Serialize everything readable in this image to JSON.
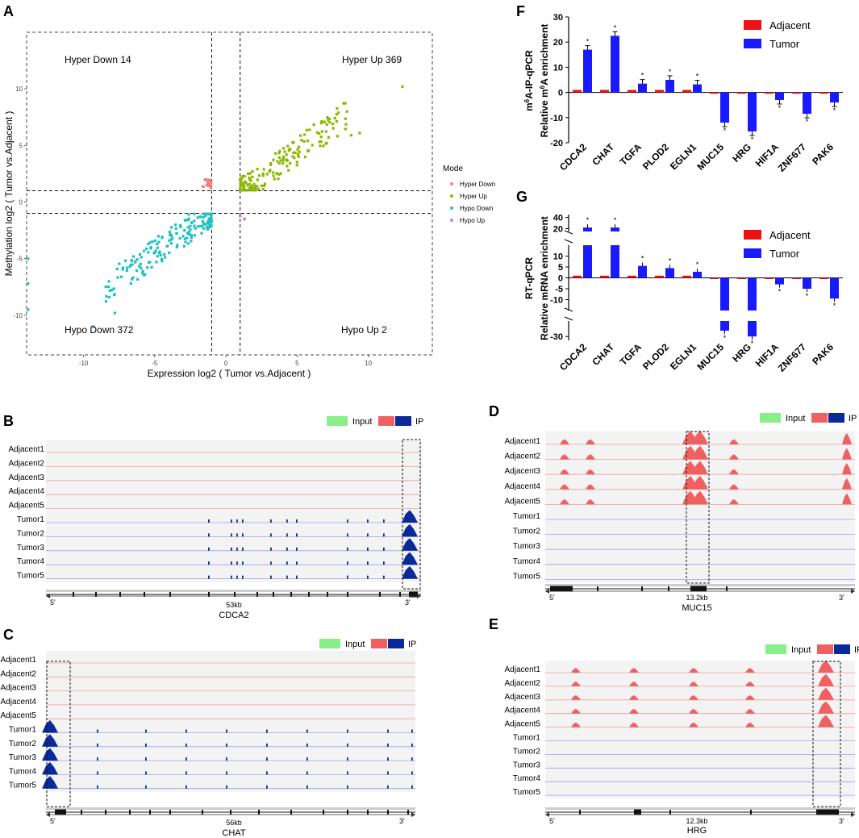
{
  "colors": {
    "hyper_down": "#f08080",
    "hyper_up": "#8db600",
    "hypo_down": "#20c0c0",
    "hypo_up": "#c080f0",
    "adjacent": "#ee1111",
    "tumor": "#1a1aff",
    "input": "#88ee88",
    "ip_red": "#f06060",
    "ip_blue": "#0a2a9a",
    "track_bg": "#f3f3f3",
    "adj_line": "#f0a0a0",
    "tum_line": "#a0a0e8"
  },
  "panel_letters": {
    "a": "A",
    "b": "B",
    "c": "C",
    "d": "D",
    "e": "E",
    "f": "F",
    "g": "G"
  },
  "chart_data": [
    {
      "id": "A",
      "type": "scatter",
      "xlabel": "Expression log2 ( Tumor vs.Adjacent )",
      "ylabel": "Methylation log2 ( Tumor vs.Adjacent )",
      "xlim": [
        -14,
        14.5
      ],
      "ylim": [
        -13.5,
        15
      ],
      "xticks": [
        -10,
        -5,
        0,
        5,
        10
      ],
      "yticks": [
        -10,
        -5,
        0,
        5,
        10
      ],
      "xtick_labels": [
        "-10",
        "-5",
        "0",
        "5",
        "10"
      ],
      "ytick_labels": [
        "-10",
        "-5",
        "0",
        "5",
        "10"
      ],
      "thresholds": {
        "x": [
          -1,
          1
        ],
        "y": [
          -1,
          1
        ]
      },
      "quadrant_labels": {
        "hyper_down": "Hyper Down 14",
        "hyper_up": "Hyper Up 369",
        "hypo_down": "Hypo Down 372",
        "hypo_up": "Hypo Up 2"
      },
      "legend": {
        "title": "Mode",
        "entries": [
          {
            "key": "hyper_down",
            "label": "Hyper Down"
          },
          {
            "key": "hyper_up",
            "label": "Hyper Up"
          },
          {
            "key": "hypo_down",
            "label": "Hypo Down"
          },
          {
            "key": "hypo_up",
            "label": "Hypo Up"
          }
        ]
      },
      "groups": {
        "hyper_up": {
          "count": 369,
          "x_range": [
            1.0,
            12.5
          ],
          "trend": "y ≈ 0.9x",
          "n_drawn": 180
        },
        "hypo_down": {
          "count": 372,
          "x_range": [
            -14,
            -1.0
          ],
          "trend": "y ≈ 0.9x",
          "n_drawn": 180
        },
        "hyper_down": {
          "count": 14,
          "x_range": [
            -1.6,
            -1.0
          ],
          "y_range": [
            1.1,
            2.0
          ]
        },
        "hypo_up": {
          "count": 2,
          "points": [
            [
              1.0,
              -1.2
            ],
            [
              1.3,
              -1.5
            ]
          ]
        }
      }
    },
    {
      "id": "F",
      "type": "bar",
      "ylabel_line1": "m6A-IP-qPCR",
      "ylabel_line2": "Relative m6A enrichment",
      "ylim": [
        -20,
        30
      ],
      "yticks": [
        -20,
        -10,
        0,
        10,
        20,
        30
      ],
      "ytick_labels": [
        "-20",
        "-10",
        "0",
        "10",
        "20",
        "30"
      ],
      "categories": [
        "CDCA2",
        "CHAT",
        "TGFA",
        "PLOD2",
        "EGLN1",
        "MUC15",
        "HRG",
        "HIF1A",
        "ZNF677",
        "PAK6"
      ],
      "series": [
        {
          "name": "Adjacent",
          "values": [
            1,
            1,
            1,
            1,
            1,
            -0.5,
            -0.5,
            -0.5,
            -0.5,
            -0.5
          ]
        },
        {
          "name": "Tumor",
          "values": [
            17,
            22.5,
            3.5,
            5.0,
            3.2,
            -12,
            -15.5,
            -3,
            -8.5,
            -4
          ]
        }
      ],
      "significance": "*"
    },
    {
      "id": "G",
      "type": "bar",
      "broken_axis": true,
      "ylabel_line1": "RT-qPCR",
      "ylabel_line2": "Relative mRNA enrichment",
      "ytick_labels": [
        "40",
        "20",
        "10",
        "5",
        "0",
        "-5",
        "-10",
        "-30"
      ],
      "categories": [
        "CDCA2",
        "CHAT",
        "TGFA",
        "PLOD2",
        "EGLN1",
        "MUC15",
        "HRG",
        "HIF1A",
        "ZNF677",
        "PAK6"
      ],
      "series": [
        {
          "name": "Adjacent",
          "values": [
            1,
            1,
            1,
            1,
            1,
            -0.5,
            -0.5,
            -0.5,
            -0.5,
            -0.5
          ]
        },
        {
          "name": "Tumor",
          "values": [
            22,
            22,
            5.5,
            4.5,
            2.8,
            -27,
            -30,
            -3,
            -5,
            -9.5
          ]
        }
      ],
      "significance": "*"
    }
  ],
  "tracks": {
    "legend": {
      "input": "Input",
      "ip": "IP"
    },
    "row_labels": [
      "Adjacent1",
      "Adjacent2",
      "Adjacent3",
      "Adjacent4",
      "Adjacent5",
      "Tumor1",
      "Tumor2",
      "Tumor3",
      "Tumor4",
      "Tumor5"
    ],
    "prime5": "5'",
    "prime3": "3'",
    "panels": [
      {
        "id": "B",
        "gene": "CDCA2",
        "length": "53kb",
        "signal": "tumor"
      },
      {
        "id": "C",
        "gene": "CHAT",
        "length": "56kb",
        "signal": "tumor"
      },
      {
        "id": "D",
        "gene": "MUC15",
        "length": "13.2kb",
        "signal": "adjacent"
      },
      {
        "id": "E",
        "gene": "HRG",
        "length": "12.3kb",
        "signal": "adjacent"
      }
    ]
  }
}
